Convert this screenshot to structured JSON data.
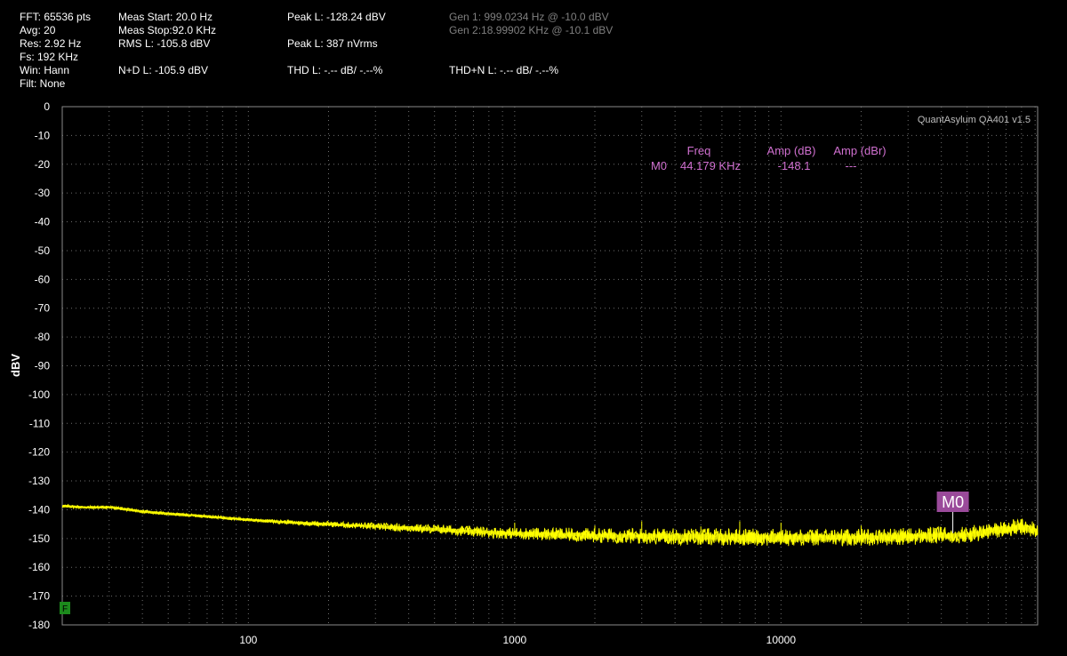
{
  "stats": {
    "fft": "FFT: 65536 pts",
    "avg": "Avg: 20",
    "res": "Res: 2.92 Hz",
    "fs": "Fs: 192 KHz",
    "win": "Win: Hann",
    "filt": "Filt: None",
    "meas_start": "Meas Start: 20.0 Hz",
    "meas_stop": "Meas Stop:92.0 KHz",
    "rms": "RMS L: -105.8 dBV",
    "nd": "N+D L: -105.9 dBV",
    "peak_dbv": "Peak L: -128.24 dBV",
    "peak_nv": "Peak L: 387 nVrms",
    "thd": "THD L: -.-- dB/ -.--%",
    "thdn": "THD+N L: -.-- dB/ -.--%",
    "gen1": "Gen 1: 999.0234 Hz @ -10.0  dBV",
    "gen2": "Gen 2:18.99902 KHz @ -10.1  dBV"
  },
  "instrument_label": "QuantAsylum QA401 v1.5",
  "marker_table": {
    "col_freq": "Freq",
    "col_amp_db": "Amp (dB)",
    "col_amp_dbr": "Amp (dBr)",
    "rows": [
      {
        "id": "M0",
        "freq": "44.179 KHz",
        "amp_db": "-148.1",
        "amp_dbr": "---"
      }
    ]
  },
  "marker_flag": "F",
  "colors": {
    "background": "#000000",
    "trace": "#ffff00",
    "grid": "#6e6e6e",
    "marker_text": "#d070d0",
    "marker_box": "#9a4a9a",
    "flag": "#1c8a1c"
  },
  "chart_data": {
    "type": "line",
    "title": "",
    "xlabel": "",
    "ylabel": "dBV",
    "x_scale": "log",
    "xlim": [
      20,
      92000
    ],
    "ylim": [
      -180,
      0
    ],
    "y_ticks": [
      0,
      -10,
      -20,
      -30,
      -40,
      -50,
      -60,
      -70,
      -80,
      -90,
      -100,
      -110,
      -120,
      -130,
      -140,
      -150,
      -160,
      -170,
      -180
    ],
    "x_tick_labels": [
      "100",
      "1000",
      "10000"
    ],
    "x_tick_values": [
      100,
      1000,
      10000
    ],
    "grid": true,
    "series": [
      {
        "x": [
          20,
          25,
          30,
          40,
          50,
          70,
          100,
          150,
          200,
          300,
          500,
          700,
          1000,
          2000,
          3000,
          5000,
          7000,
          10000,
          15000,
          20000,
          30000,
          40000,
          50000,
          60000,
          70000,
          80000,
          92000
        ],
        "values": [
          -138.7,
          -139.2,
          -139.1,
          -140.6,
          -141.4,
          -142.3,
          -143.5,
          -144.5,
          -145.0,
          -145.8,
          -146.7,
          -147.6,
          -148.2,
          -148.9,
          -149.2,
          -149.3,
          -149.5,
          -149.6,
          -149.6,
          -149.5,
          -149.3,
          -148.9,
          -148.7,
          -147.6,
          -146.6,
          -146.0,
          -147.2
        ]
      }
    ],
    "spurs": [
      {
        "x": 1000,
        "y": -144.5
      },
      {
        "x": 2000,
        "y": -145.5
      },
      {
        "x": 3000,
        "y": -144.0
      },
      {
        "x": 5000,
        "y": -145.8
      },
      {
        "x": 7000,
        "y": -144.0
      },
      {
        "x": 10000,
        "y": -144.5
      },
      {
        "x": 20000,
        "y": -145.5
      },
      {
        "x": 40000,
        "y": -146.0
      }
    ],
    "markers": [
      {
        "label": "M0",
        "x": 44179,
        "y": -148.1
      }
    ]
  }
}
